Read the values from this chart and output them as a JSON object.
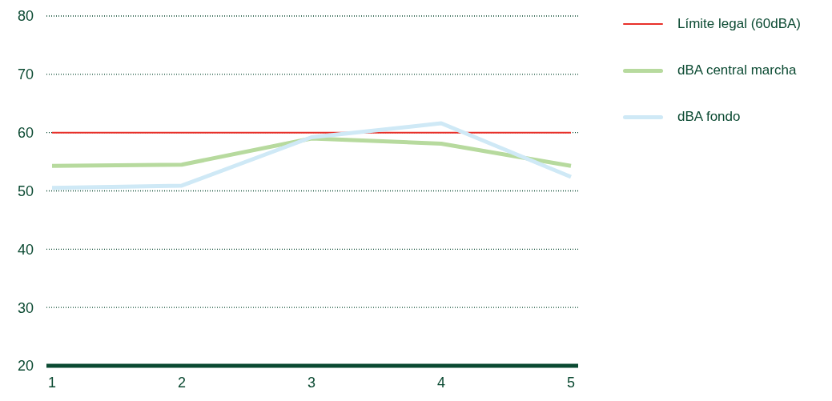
{
  "chart_data": {
    "type": "line",
    "categories": [
      "1",
      "2",
      "3",
      "4",
      "5"
    ],
    "series": [
      {
        "name": "Límite legal (60dBA)",
        "color": "#e8302a",
        "values": [
          60,
          60,
          60,
          60,
          60
        ]
      },
      {
        "name": "dBA central marcha",
        "color": "#b7da9e",
        "values": [
          54.3,
          54.5,
          59.0,
          58.1,
          54.3
        ]
      },
      {
        "name": "dBA  fondo",
        "color": "#cfe9f6",
        "values": [
          50.5,
          50.9,
          59.2,
          61.6,
          52.4
        ]
      }
    ],
    "ylim": [
      20,
      80
    ],
    "yticks": [
      20,
      30,
      40,
      50,
      60,
      70,
      80
    ],
    "grid": "y",
    "legend": "right",
    "marker": "none",
    "line_style": "solid"
  }
}
